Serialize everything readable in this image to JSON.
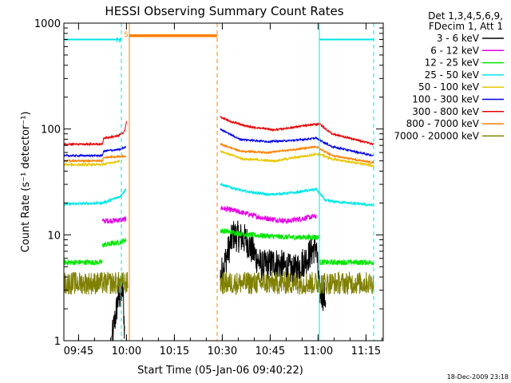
{
  "chart_data": {
    "type": "line",
    "title": "HESSI Observing Summary Count Rates",
    "xlabel": "Start Time (05-Jan-06 09:40:22)",
    "ylabel": "Count Rate (s⁻¹ detector⁻¹)",
    "x_unit": "minutes since 09:40:22",
    "xlim": [
      0,
      100
    ],
    "ylim": [
      1,
      1000
    ],
    "y_scale": "log",
    "x_ticks": [
      {
        "label": "09:45",
        "value": 4.6
      },
      {
        "label": "10:00",
        "value": 19.6
      },
      {
        "label": "10:15",
        "value": 34.6
      },
      {
        "label": "10:30",
        "value": 49.6
      },
      {
        "label": "10:45",
        "value": 64.6
      },
      {
        "label": "11:00",
        "value": 79.6
      },
      {
        "label": "11:15",
        "value": 94.6
      }
    ],
    "y_ticks": [
      {
        "label": "1",
        "value": 1
      },
      {
        "label": "10",
        "value": 10
      },
      {
        "label": "100",
        "value": 100
      },
      {
        "label": "1000",
        "value": 1000
      }
    ],
    "legend": {
      "position": "top-right",
      "header": [
        "Det 1,3,4,5,6,9,",
        "FDecim 1, Att 1"
      ]
    },
    "series": [
      {
        "name": "3 - 6 keV",
        "color": "#000000",
        "noise": 0.35,
        "segments": [
          {
            "points": [
              [
                15.0,
                1.0
              ],
              [
                17.0,
                2.5
              ],
              [
                18.5,
                3.0
              ],
              [
                19.0,
                1.2
              ]
            ]
          },
          {
            "points": [
              [
                49.0,
                4.0
              ],
              [
                53.0,
                10.0
              ],
              [
                57.0,
                9.0
              ],
              [
                62.0,
                5.0
              ],
              [
                66.0,
                5.5
              ],
              [
                72.0,
                4.5
              ],
              [
                76.0,
                6.0
              ],
              [
                79.0,
                8.0
              ],
              [
                80.0,
                3.0
              ],
              [
                82.0,
                2.5
              ]
            ]
          }
        ]
      },
      {
        "name": "6 - 12 keV",
        "color": "#e600e6",
        "noise": 0.06,
        "segments": [
          {
            "points": [
              [
                12.0,
                13.5
              ],
              [
                17.5,
                13.8
              ],
              [
                19.5,
                14.0
              ]
            ]
          },
          {
            "points": [
              [
                49.0,
                18.0
              ],
              [
                55.0,
                16.5
              ],
              [
                62.0,
                14.5
              ],
              [
                70.0,
                13.5
              ],
              [
                76.0,
                14.5
              ],
              [
                79.0,
                15.0
              ]
            ]
          }
        ]
      },
      {
        "name": "12 - 25 keV",
        "color": "#00e600",
        "noise": 0.06,
        "segments": [
          {
            "points": [
              [
                0.0,
                5.5
              ],
              [
                12.0,
                5.5
              ]
            ]
          },
          {
            "points": [
              [
                12.0,
                8.0
              ],
              [
                17.5,
                8.5
              ],
              [
                19.5,
                9.0
              ]
            ]
          },
          {
            "points": [
              [
                49.0,
                11.0
              ],
              [
                58.0,
                10.0
              ],
              [
                70.0,
                9.5
              ],
              [
                80.0,
                9.5
              ]
            ]
          },
          {
            "points": [
              [
                80.0,
                5.5
              ],
              [
                97.0,
                5.5
              ]
            ]
          }
        ]
      },
      {
        "name": "25 - 50 keV",
        "color": "#00e6e6",
        "noise": 0.03,
        "segments": [
          {
            "points": [
              [
                0.0,
                19.5
              ],
              [
                12.0,
                20.0
              ],
              [
                15.0,
                21.5
              ],
              [
                17.5,
                23.0
              ],
              [
                19.5,
                27.0
              ]
            ]
          },
          {
            "points": [
              [
                49.0,
                30.0
              ],
              [
                56.0,
                26.0
              ],
              [
                64.0,
                24.0
              ],
              [
                72.0,
                25.0
              ],
              [
                79.0,
                27.0
              ],
              [
                82.0,
                21.0
              ],
              [
                97.0,
                19.0
              ]
            ]
          }
        ]
      },
      {
        "name": "50 - 100 keV",
        "color": "#e6c800",
        "noise": 0.025,
        "segments": [
          {
            "points": [
              [
                0.0,
                46.0
              ],
              [
                12.0,
                46.0
              ],
              [
                17.5,
                50.0
              ]
            ]
          },
          {
            "points": [
              [
                49.0,
                62.0
              ],
              [
                56.0,
                52.0
              ],
              [
                66.0,
                50.0
              ],
              [
                76.0,
                56.0
              ],
              [
                80.0,
                58.0
              ],
              [
                84.0,
                52.0
              ],
              [
                97.0,
                45.0
              ]
            ]
          }
        ]
      },
      {
        "name": "100 - 300 keV",
        "color": "#0000e6",
        "noise": 0.02,
        "segments": [
          {
            "points": [
              [
                0.0,
                56.0
              ],
              [
                12.0,
                56.0
              ],
              [
                12.5,
                62.0
              ],
              [
                17.5,
                64.0
              ],
              [
                19.5,
                68.0
              ]
            ]
          },
          {
            "points": [
              [
                49.0,
                100.0
              ],
              [
                55.0,
                80.0
              ],
              [
                64.0,
                76.0
              ],
              [
                72.0,
                78.0
              ],
              [
                79.0,
                82.0
              ],
              [
                84.0,
                68.0
              ],
              [
                97.0,
                56.0
              ]
            ]
          }
        ]
      },
      {
        "name": "300 - 800 keV",
        "color": "#e60000",
        "noise": 0.02,
        "segments": [
          {
            "points": [
              [
                0.0,
                72.0
              ],
              [
                12.0,
                72.0
              ],
              [
                12.5,
                82.0
              ],
              [
                17.0,
                86.0
              ],
              [
                19.0,
                95.0
              ],
              [
                19.7,
                120.0
              ]
            ]
          },
          {
            "points": [
              [
                49.0,
                130.0
              ],
              [
                52.0,
                118.0
              ],
              [
                58.0,
                105.0
              ],
              [
                66.0,
                98.0
              ],
              [
                74.0,
                106.0
              ],
              [
                80.0,
                112.0
              ],
              [
                84.0,
                90.0
              ],
              [
                97.0,
                72.0
              ]
            ]
          }
        ]
      },
      {
        "name": "800 - 7000 keV",
        "color": "#ff7f00",
        "noise": 0.02,
        "segments": [
          {
            "points": [
              [
                0.0,
                50.0
              ],
              [
                12.0,
                50.0
              ],
              [
                12.5,
                54.0
              ],
              [
                19.5,
                55.0
              ]
            ]
          },
          {
            "points": [
              [
                49.0,
                72.0
              ],
              [
                55.0,
                62.0
              ],
              [
                64.0,
                60.0
              ],
              [
                72.0,
                64.0
              ],
              [
                79.0,
                68.0
              ],
              [
                84.0,
                56.0
              ],
              [
                97.0,
                48.0
              ]
            ]
          },
          {
            "points": [
              [
                20.5,
                760.0
              ],
              [
                48.0,
                760.0
              ]
            ],
            "noise": 0,
            "width": 3.5
          }
        ]
      },
      {
        "name": "7000 - 20000 keV",
        "color": "#808000",
        "noise": 0.25,
        "segments": [
          {
            "points": [
              [
                0.0,
                3.5
              ],
              [
                20.0,
                3.5
              ]
            ]
          },
          {
            "points": [
              [
                49.0,
                3.5
              ],
              [
                97.0,
                3.5
              ]
            ]
          }
        ]
      }
    ],
    "vlines": [
      {
        "x": 0.0,
        "color": "#00e6e6",
        "style": "solid"
      },
      {
        "x": 18.0,
        "color": "#00e6e6",
        "style": "dashed"
      },
      {
        "x": 20.5,
        "color": "#ff7f00",
        "style": "solid"
      },
      {
        "x": 48.0,
        "color": "#ff7f00",
        "style": "dashed"
      },
      {
        "x": 80.0,
        "color": "#00e6e6",
        "style": "solid"
      },
      {
        "x": 97.0,
        "color": "#00e6e6",
        "style": "dashed"
      }
    ],
    "hlines": [
      {
        "x0": 0.0,
        "x1": 18.0,
        "y": 700,
        "color": "#00e6e6"
      },
      {
        "x0": 80.0,
        "x1": 97.0,
        "y": 700,
        "color": "#00e6e6"
      }
    ],
    "annotations": [
      {
        "text": "S",
        "x": 20.5,
        "y": 800,
        "color": "#ff7f00"
      },
      {
        "text": "N",
        "x": 18.0,
        "y": 700,
        "color": "#00e6e6"
      }
    ],
    "footer": "18-Dec-2009 23:18"
  }
}
